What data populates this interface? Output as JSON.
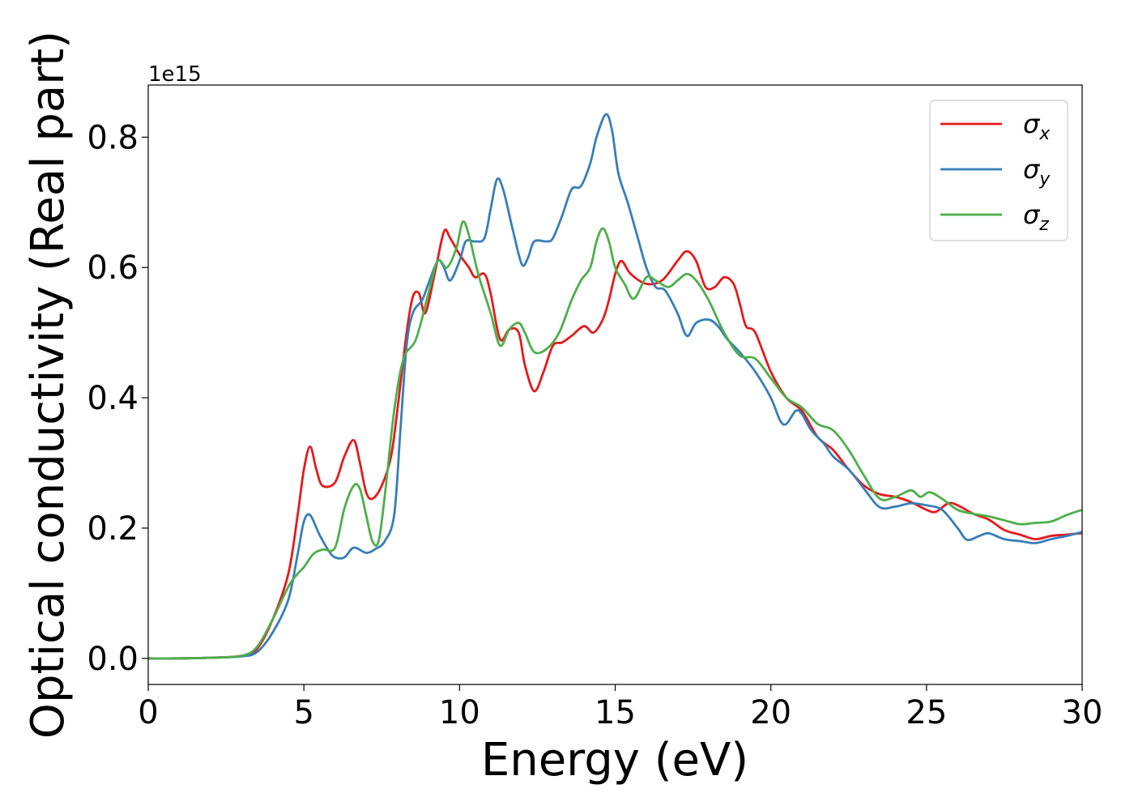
{
  "chart_data": {
    "type": "line",
    "title": "",
    "xlabel": "Energy (eV)",
    "ylabel": "Optical conductivity (Real part)",
    "y_offset_label": "1e15",
    "xlim": [
      0,
      30
    ],
    "ylim": [
      -0.04,
      0.88
    ],
    "x_ticks": [
      0,
      5,
      10,
      15,
      20,
      25,
      30
    ],
    "x_tick_labels": [
      "0",
      "5",
      "10",
      "15",
      "20",
      "25",
      "30"
    ],
    "y_ticks": [
      0.0,
      0.2,
      0.4,
      0.6,
      0.8
    ],
    "y_tick_labels": [
      "0.0",
      "0.2",
      "0.4",
      "0.6",
      "0.8"
    ],
    "grid": false,
    "legend_position": "top-right",
    "series": [
      {
        "name": "σ",
        "subscript": "x",
        "color": "#e41a1c",
        "points": [
          [
            0,
            0
          ],
          [
            1,
            0
          ],
          [
            2,
            0.001
          ],
          [
            3,
            0.004
          ],
          [
            3.5,
            0.015
          ],
          [
            4,
            0.06
          ],
          [
            4.5,
            0.13
          ],
          [
            4.8,
            0.22
          ],
          [
            5,
            0.29
          ],
          [
            5.2,
            0.325
          ],
          [
            5.4,
            0.29
          ],
          [
            5.6,
            0.265
          ],
          [
            6,
            0.27
          ],
          [
            6.3,
            0.31
          ],
          [
            6.6,
            0.335
          ],
          [
            6.8,
            0.3
          ],
          [
            7,
            0.255
          ],
          [
            7.2,
            0.245
          ],
          [
            7.5,
            0.265
          ],
          [
            7.8,
            0.31
          ],
          [
            8,
            0.38
          ],
          [
            8.3,
            0.5
          ],
          [
            8.5,
            0.555
          ],
          [
            8.7,
            0.56
          ],
          [
            8.9,
            0.53
          ],
          [
            9.2,
            0.59
          ],
          [
            9.5,
            0.655
          ],
          [
            9.7,
            0.645
          ],
          [
            10,
            0.62
          ],
          [
            10.3,
            0.6
          ],
          [
            10.5,
            0.585
          ],
          [
            10.8,
            0.59
          ],
          [
            11,
            0.56
          ],
          [
            11.3,
            0.49
          ],
          [
            11.6,
            0.505
          ],
          [
            11.9,
            0.5
          ],
          [
            12.1,
            0.45
          ],
          [
            12.4,
            0.41
          ],
          [
            12.7,
            0.44
          ],
          [
            13,
            0.48
          ],
          [
            13.3,
            0.485
          ],
          [
            13.6,
            0.495
          ],
          [
            14,
            0.51
          ],
          [
            14.3,
            0.5
          ],
          [
            14.6,
            0.52
          ],
          [
            14.8,
            0.55
          ],
          [
            15,
            0.59
          ],
          [
            15.2,
            0.61
          ],
          [
            15.5,
            0.59
          ],
          [
            16,
            0.575
          ],
          [
            16.5,
            0.58
          ],
          [
            17,
            0.61
          ],
          [
            17.3,
            0.625
          ],
          [
            17.6,
            0.61
          ],
          [
            17.9,
            0.57
          ],
          [
            18.2,
            0.57
          ],
          [
            18.5,
            0.585
          ],
          [
            18.8,
            0.575
          ],
          [
            19,
            0.545
          ],
          [
            19.2,
            0.51
          ],
          [
            19.5,
            0.5
          ],
          [
            20,
            0.44
          ],
          [
            20.5,
            0.4
          ],
          [
            21,
            0.38
          ],
          [
            21.5,
            0.34
          ],
          [
            22,
            0.32
          ],
          [
            22.5,
            0.29
          ],
          [
            23,
            0.265
          ],
          [
            23.5,
            0.252
          ],
          [
            24,
            0.248
          ],
          [
            24.5,
            0.24
          ],
          [
            25,
            0.228
          ],
          [
            25.3,
            0.225
          ],
          [
            25.7,
            0.238
          ],
          [
            26,
            0.235
          ],
          [
            26.5,
            0.222
          ],
          [
            27,
            0.213
          ],
          [
            27.5,
            0.197
          ],
          [
            28,
            0.19
          ],
          [
            28.5,
            0.183
          ],
          [
            29,
            0.188
          ],
          [
            29.5,
            0.19
          ],
          [
            30,
            0.192
          ]
        ]
      },
      {
        "name": "σ",
        "subscript": "y",
        "color": "#377eb8",
        "points": [
          [
            0,
            0
          ],
          [
            1,
            0
          ],
          [
            2,
            0.001
          ],
          [
            3,
            0.003
          ],
          [
            3.5,
            0.01
          ],
          [
            4,
            0.04
          ],
          [
            4.5,
            0.09
          ],
          [
            4.8,
            0.16
          ],
          [
            5,
            0.21
          ],
          [
            5.2,
            0.22
          ],
          [
            5.5,
            0.19
          ],
          [
            5.8,
            0.165
          ],
          [
            6,
            0.155
          ],
          [
            6.3,
            0.155
          ],
          [
            6.6,
            0.17
          ],
          [
            7,
            0.162
          ],
          [
            7.3,
            0.168
          ],
          [
            7.6,
            0.18
          ],
          [
            7.9,
            0.22
          ],
          [
            8.1,
            0.35
          ],
          [
            8.3,
            0.48
          ],
          [
            8.5,
            0.53
          ],
          [
            8.8,
            0.55
          ],
          [
            9,
            0.575
          ],
          [
            9.3,
            0.61
          ],
          [
            9.5,
            0.6
          ],
          [
            9.7,
            0.58
          ],
          [
            10,
            0.61
          ],
          [
            10.2,
            0.64
          ],
          [
            10.5,
            0.64
          ],
          [
            10.8,
            0.645
          ],
          [
            11,
            0.69
          ],
          [
            11.2,
            0.735
          ],
          [
            11.4,
            0.72
          ],
          [
            11.7,
            0.66
          ],
          [
            12,
            0.605
          ],
          [
            12.2,
            0.615
          ],
          [
            12.4,
            0.64
          ],
          [
            12.8,
            0.64
          ],
          [
            13,
            0.645
          ],
          [
            13.3,
            0.68
          ],
          [
            13.6,
            0.72
          ],
          [
            13.9,
            0.725
          ],
          [
            14.2,
            0.76
          ],
          [
            14.4,
            0.8
          ],
          [
            14.7,
            0.835
          ],
          [
            14.9,
            0.81
          ],
          [
            15.1,
            0.745
          ],
          [
            15.4,
            0.7
          ],
          [
            15.7,
            0.65
          ],
          [
            16,
            0.6
          ],
          [
            16.3,
            0.57
          ],
          [
            16.6,
            0.565
          ],
          [
            17,
            0.53
          ],
          [
            17.3,
            0.495
          ],
          [
            17.6,
            0.515
          ],
          [
            18,
            0.52
          ],
          [
            18.3,
            0.51
          ],
          [
            18.6,
            0.49
          ],
          [
            19,
            0.47
          ],
          [
            19.5,
            0.44
          ],
          [
            20,
            0.4
          ],
          [
            20.3,
            0.365
          ],
          [
            20.5,
            0.36
          ],
          [
            20.8,
            0.38
          ],
          [
            21,
            0.375
          ],
          [
            21.3,
            0.35
          ],
          [
            21.7,
            0.33
          ],
          [
            22,
            0.31
          ],
          [
            22.5,
            0.29
          ],
          [
            23,
            0.26
          ],
          [
            23.5,
            0.232
          ],
          [
            24,
            0.233
          ],
          [
            24.5,
            0.238
          ],
          [
            25,
            0.235
          ],
          [
            25.5,
            0.228
          ],
          [
            26,
            0.2
          ],
          [
            26.3,
            0.182
          ],
          [
            26.7,
            0.188
          ],
          [
            27,
            0.192
          ],
          [
            27.5,
            0.183
          ],
          [
            28,
            0.18
          ],
          [
            28.5,
            0.177
          ],
          [
            29,
            0.183
          ],
          [
            29.5,
            0.188
          ],
          [
            30,
            0.194
          ]
        ]
      },
      {
        "name": "σ",
        "subscript": "z",
        "color": "#4daf4a",
        "points": [
          [
            0,
            0
          ],
          [
            1,
            0
          ],
          [
            2,
            0.001
          ],
          [
            3,
            0.004
          ],
          [
            3.5,
            0.018
          ],
          [
            4,
            0.06
          ],
          [
            4.5,
            0.11
          ],
          [
            4.8,
            0.13
          ],
          [
            5,
            0.14
          ],
          [
            5.3,
            0.16
          ],
          [
            5.6,
            0.167
          ],
          [
            6,
            0.17
          ],
          [
            6.3,
            0.23
          ],
          [
            6.6,
            0.265
          ],
          [
            6.8,
            0.26
          ],
          [
            7,
            0.22
          ],
          [
            7.2,
            0.18
          ],
          [
            7.4,
            0.18
          ],
          [
            7.6,
            0.25
          ],
          [
            7.9,
            0.38
          ],
          [
            8.2,
            0.46
          ],
          [
            8.6,
            0.49
          ],
          [
            9,
            0.56
          ],
          [
            9.3,
            0.61
          ],
          [
            9.6,
            0.6
          ],
          [
            9.9,
            0.63
          ],
          [
            10.1,
            0.67
          ],
          [
            10.3,
            0.65
          ],
          [
            10.6,
            0.59
          ],
          [
            11,
            0.53
          ],
          [
            11.3,
            0.48
          ],
          [
            11.6,
            0.505
          ],
          [
            11.9,
            0.515
          ],
          [
            12.1,
            0.5
          ],
          [
            12.4,
            0.47
          ],
          [
            12.8,
            0.475
          ],
          [
            13.2,
            0.5
          ],
          [
            13.6,
            0.55
          ],
          [
            13.9,
            0.58
          ],
          [
            14.2,
            0.6
          ],
          [
            14.4,
            0.64
          ],
          [
            14.6,
            0.66
          ],
          [
            14.8,
            0.64
          ],
          [
            15,
            0.6
          ],
          [
            15.3,
            0.575
          ],
          [
            15.6,
            0.552
          ],
          [
            16,
            0.585
          ],
          [
            16.3,
            0.58
          ],
          [
            16.7,
            0.57
          ],
          [
            17,
            0.58
          ],
          [
            17.3,
            0.59
          ],
          [
            17.6,
            0.58
          ],
          [
            18,
            0.55
          ],
          [
            18.5,
            0.5
          ],
          [
            19,
            0.465
          ],
          [
            19.5,
            0.46
          ],
          [
            20,
            0.43
          ],
          [
            20.5,
            0.4
          ],
          [
            21,
            0.385
          ],
          [
            21.5,
            0.36
          ],
          [
            22,
            0.35
          ],
          [
            22.5,
            0.32
          ],
          [
            23,
            0.28
          ],
          [
            23.5,
            0.245
          ],
          [
            24,
            0.248
          ],
          [
            24.5,
            0.258
          ],
          [
            24.8,
            0.248
          ],
          [
            25.1,
            0.255
          ],
          [
            25.5,
            0.245
          ],
          [
            26,
            0.228
          ],
          [
            26.5,
            0.222
          ],
          [
            27,
            0.218
          ],
          [
            27.5,
            0.212
          ],
          [
            28,
            0.206
          ],
          [
            28.5,
            0.208
          ],
          [
            29,
            0.21
          ],
          [
            29.5,
            0.22
          ],
          [
            30,
            0.228
          ]
        ]
      }
    ]
  }
}
